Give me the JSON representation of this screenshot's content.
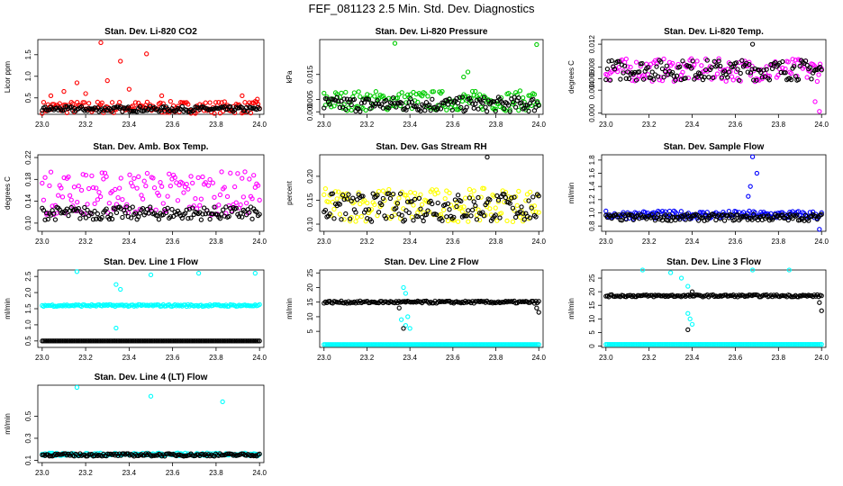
{
  "figure": {
    "title": "FEF_081123  2.5 Min. Std. Dev. Diagnostics"
  },
  "colors": {
    "black": "#000000",
    "red": "#ff0000",
    "green": "#00cc00",
    "magenta": "#ff00ff",
    "yellow": "#ffff00",
    "blue": "#0000ff",
    "cyan": "#00ffff"
  },
  "chart_data": [
    {
      "type": "scatter",
      "title": "Stan. Dev. Li-820 CO2",
      "ylabel": "Licor ppm",
      "xlim": [
        22.98,
        24.02
      ],
      "ylim": [
        0.12,
        1.85
      ],
      "xticks": [
        "23.0",
        "23.2",
        "23.4",
        "23.6",
        "23.8",
        "24.0"
      ],
      "yticks": [
        "0.5",
        "1.0",
        "1.5"
      ],
      "series": [
        {
          "color": "#ff0000",
          "base": 0.28,
          "spread": 0.14,
          "spikes": [
            [
              23.04,
              0.55
            ],
            [
              23.1,
              0.65
            ],
            [
              23.16,
              0.85
            ],
            [
              23.2,
              0.6
            ],
            [
              23.27,
              1.78
            ],
            [
              23.3,
              0.9
            ],
            [
              23.36,
              1.35
            ],
            [
              23.4,
              0.7
            ],
            [
              23.48,
              1.52
            ],
            [
              23.55,
              0.55
            ],
            [
              23.92,
              0.55
            ],
            [
              23.99,
              0.47
            ]
          ]
        },
        {
          "color": "#000000",
          "base": 0.24,
          "spread": 0.06,
          "spikes": []
        }
      ]
    },
    {
      "type": "scatter",
      "title": "Stan. Dev. Li-820 Pressure",
      "ylabel": "kPa",
      "xlim": [
        22.98,
        24.02
      ],
      "ylim": [
        -0.001,
        0.029
      ],
      "xticks": [
        "23.0",
        "23.2",
        "23.4",
        "23.6",
        "23.8",
        "24.0"
      ],
      "yticks": [
        "0.000",
        "0.005",
        "0.015"
      ],
      "series": [
        {
          "color": "#00cc00",
          "base": 0.0045,
          "spread": 0.004,
          "spikes": [
            [
              23.33,
              0.0275
            ],
            [
              23.65,
              0.014
            ],
            [
              23.67,
              0.016
            ],
            [
              23.99,
              0.027
            ]
          ]
        },
        {
          "color": "#000000",
          "base": 0.003,
          "spread": 0.003,
          "spikes": []
        }
      ]
    },
    {
      "type": "scatter",
      "title": "Stan. Dev. Li-820 Temp.",
      "ylabel": "degrees C",
      "xlim": [
        22.98,
        24.02
      ],
      "ylim": [
        -0.0002,
        0.0128
      ],
      "xticks": [
        "23.0",
        "23.2",
        "23.4",
        "23.6",
        "23.8",
        "24.0"
      ],
      "yticks": [
        "0.000",
        "0.004",
        "0.006",
        "0.008",
        "0.012"
      ],
      "series": [
        {
          "color": "#ff00ff",
          "base": 0.0075,
          "spread": 0.002,
          "spikes": [
            [
              23.99,
              0.0003
            ],
            [
              23.97,
              0.002
            ]
          ]
        },
        {
          "color": "#000000",
          "base": 0.0075,
          "spread": 0.0018,
          "spikes": [
            [
              23.68,
              0.012
            ]
          ]
        }
      ]
    },
    {
      "type": "scatter",
      "title": "Stan. Dev. Amb. Box Temp.",
      "ylabel": "degrees C",
      "xlim": [
        22.98,
        24.02
      ],
      "ylim": [
        0.085,
        0.225
      ],
      "xticks": [
        "23.0",
        "23.2",
        "23.4",
        "23.6",
        "23.8",
        "24.0"
      ],
      "yticks": [
        "0.10",
        "0.14",
        "0.18",
        "0.22"
      ],
      "series": [
        {
          "color": "#ff00ff",
          "base": 0.155,
          "spread": 0.04,
          "spikes": []
        },
        {
          "color": "#000000",
          "base": 0.118,
          "spread": 0.012,
          "spikes": []
        }
      ]
    },
    {
      "type": "scatter",
      "title": "Stan. Dev. Gas Stream RH",
      "ylabel": "percent",
      "xlim": [
        22.98,
        24.02
      ],
      "ylim": [
        0.085,
        0.245
      ],
      "xticks": [
        "23.0",
        "23.2",
        "23.4",
        "23.6",
        "23.8",
        "24.0"
      ],
      "yticks": [
        "0.10",
        "0.15",
        "0.20"
      ],
      "series": [
        {
          "color": "#ffff00",
          "base": 0.14,
          "spread": 0.035,
          "spikes": []
        },
        {
          "color": "#000000",
          "base": 0.135,
          "spread": 0.03,
          "spikes": [
            [
              23.76,
              0.24
            ]
          ]
        }
      ]
    },
    {
      "type": "scatter",
      "title": "Stan. Dev. Sample Flow",
      "ylabel": "ml/min",
      "xlim": [
        22.98,
        24.02
      ],
      "ylim": [
        0.72,
        1.88
      ],
      "xticks": [
        "23.0",
        "23.2",
        "23.4",
        "23.6",
        "23.8",
        "24.0"
      ],
      "yticks": [
        "0.8",
        "1.0",
        "1.2",
        "1.4",
        "1.6",
        "1.8"
      ],
      "series": [
        {
          "color": "#0000ff",
          "base": 0.97,
          "spread": 0.06,
          "spikes": [
            [
              23.66,
              1.25
            ],
            [
              23.68,
              1.85
            ],
            [
              23.7,
              1.6
            ],
            [
              23.67,
              1.4
            ],
            [
              23.99,
              0.75
            ]
          ]
        },
        {
          "color": "#000000",
          "base": 0.93,
          "spread": 0.05,
          "spikes": []
        }
      ]
    },
    {
      "type": "scatter",
      "title": "Stan. Dev. Line 1 Flow",
      "ylabel": "ml/min",
      "xlim": [
        22.98,
        24.02
      ],
      "ylim": [
        0.3,
        2.7
      ],
      "xticks": [
        "23.0",
        "23.2",
        "23.4",
        "23.6",
        "23.8",
        "24.0"
      ],
      "yticks": [
        "0.5",
        "1.0",
        "1.5",
        "2.0",
        "2.5"
      ],
      "series": [
        {
          "color": "#00ffff",
          "base": 1.6,
          "spread": 0.03,
          "spikes": [
            [
              23.16,
              2.65
            ],
            [
              23.34,
              2.25
            ],
            [
              23.36,
              2.1
            ],
            [
              23.34,
              0.9
            ],
            [
              23.5,
              2.55
            ],
            [
              23.72,
              2.6
            ],
            [
              23.98,
              2.6
            ]
          ]
        },
        {
          "color": "#000000",
          "base": 0.5,
          "spread": 0.0,
          "spikes": []
        }
      ]
    },
    {
      "type": "scatter",
      "title": "Stan. Dev. Line 2 Flow",
      "ylabel": "ml/min",
      "xlim": [
        22.98,
        24.02
      ],
      "ylim": [
        -0.5,
        26
      ],
      "xticks": [
        "23.0",
        "23.2",
        "23.4",
        "23.6",
        "23.8",
        "24.0"
      ],
      "yticks": [
        "5",
        "10",
        "15",
        "20",
        "25"
      ],
      "series": [
        {
          "color": "#00ffff",
          "base": 0.5,
          "spread": 0.0,
          "spikes": [
            [
              23.37,
              20
            ],
            [
              23.38,
              18
            ],
            [
              23.36,
              9
            ],
            [
              23.38,
              7
            ],
            [
              23.4,
              6
            ],
            [
              23.39,
              10
            ]
          ]
        },
        {
          "color": "#000000",
          "base": 15,
          "spread": 0.4,
          "spikes": [
            [
              23.35,
              13
            ],
            [
              23.37,
              6
            ],
            [
              23.38,
              15
            ],
            [
              24.0,
              11.5
            ],
            [
              23.99,
              13
            ]
          ]
        }
      ]
    },
    {
      "type": "scatter",
      "title": "Stan. Dev. Line 3 Flow",
      "ylabel": "ml/min",
      "xlim": [
        22.98,
        24.02
      ],
      "ylim": [
        -0.5,
        28
      ],
      "xticks": [
        "23.0",
        "23.2",
        "23.4",
        "23.6",
        "23.8",
        "24.0"
      ],
      "yticks": [
        "0",
        "5",
        "10",
        "15",
        "20",
        "25"
      ],
      "series": [
        {
          "color": "#00ffff",
          "base": 0.6,
          "spread": 0.0,
          "spikes": [
            [
              23.17,
              28
            ],
            [
              23.3,
              27
            ],
            [
              23.35,
              25
            ],
            [
              23.38,
              22
            ],
            [
              23.39,
              10
            ],
            [
              23.4,
              8
            ],
            [
              23.38,
              12
            ],
            [
              23.68,
              28
            ],
            [
              23.85,
              28
            ]
          ]
        },
        {
          "color": "#000000",
          "base": 18.5,
          "spread": 0.4,
          "spikes": [
            [
              23.38,
              6
            ],
            [
              23.4,
              20
            ],
            [
              24.0,
              13
            ],
            [
              23.99,
              16
            ]
          ]
        }
      ]
    },
    {
      "type": "scatter",
      "title": "Stan. Dev. Line 4 (LT) Flow",
      "ylabel": "ml/min",
      "xlim": [
        22.98,
        24.02
      ],
      "ylim": [
        0.08,
        0.78
      ],
      "xticks": [
        "23.0",
        "23.2",
        "23.4",
        "23.6",
        "23.8",
        "24.0"
      ],
      "yticks": [
        "0.1",
        "0.3",
        "0.5"
      ],
      "series": [
        {
          "color": "#00ffff",
          "base": 0.155,
          "spread": 0.012,
          "spikes": [
            [
              23.16,
              0.76
            ],
            [
              23.5,
              0.68
            ],
            [
              23.83,
              0.63
            ]
          ]
        },
        {
          "color": "#000000",
          "base": 0.15,
          "spread": 0.012,
          "spikes": []
        }
      ]
    }
  ]
}
